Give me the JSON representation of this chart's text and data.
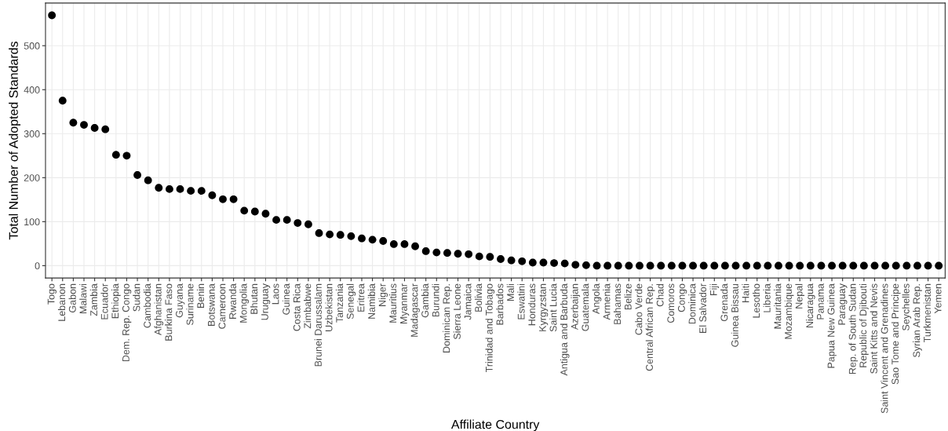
{
  "chart_data": {
    "type": "scatter",
    "xlabel": "Affiliate Country",
    "ylabel": "Total Number of Adopted Standards",
    "categories": [
      "Togo",
      "Lebanon",
      "Gabon",
      "Malawi",
      "Zambia",
      "Ecuador",
      "Ethiopia",
      "Dem. Rep. Congo",
      "Sudan",
      "Cambodia",
      "Afghanistan",
      "Burkina Faso",
      "Guyana",
      "Suriname",
      "Benin",
      "Botswana",
      "Cameroon",
      "Rwanda",
      "Mongolia",
      "Bhutan",
      "Uruguay",
      "Laos",
      "Guinea",
      "Costa Rica",
      "Zimbabwe",
      "Brunei Darussalam",
      "Uzbekistan",
      "Tanzania",
      "Senegal",
      "Eritrea",
      "Namibia",
      "Niger",
      "Mauritius",
      "Myanmar",
      "Madagascar",
      "Gambia",
      "Burundi",
      "Dominican Rep.",
      "Sierra Leone",
      "Jamaica",
      "Bolivia",
      "Trinidad and Tobago",
      "Barbados",
      "Mali",
      "Eswatini",
      "Honduras",
      "Kyrgyzstan",
      "Saint Lucia",
      "Antigua and Barbuda",
      "Azerbaijan",
      "Guatemala",
      "Angola",
      "Armenia",
      "Bahamas",
      "Belize",
      "Cabo Verde",
      "Central African Rep.",
      "Chad",
      "Comoros",
      "Congo",
      "Dominica",
      "El Salvador",
      "Fiji",
      "Grenada",
      "Guinea Bissau",
      "Haiti",
      "Lesotho",
      "Liberia",
      "Mauritania",
      "Mozambique",
      "Nepal",
      "Nicaragua",
      "Panama",
      "Papua New Guinea",
      "Paraguay",
      "Rep. of South Sudan",
      "Republic of Djibouti",
      "Saint Kitts and Nevis",
      "Saint Vincent and Grenadines",
      "Sao Tome and Principe",
      "Seychelles",
      "Syrian Arab Rep.",
      "Turkmenistan",
      "Yemen"
    ],
    "values": [
      569,
      375,
      325,
      320,
      313,
      310,
      252,
      250,
      206,
      194,
      177,
      174,
      174,
      170,
      170,
      160,
      151,
      151,
      125,
      123,
      118,
      104,
      104,
      97,
      94,
      74,
      71,
      70,
      67,
      62,
      59,
      56,
      49,
      49,
      44,
      33,
      30,
      29,
      27,
      26,
      21,
      20,
      15,
      12,
      10,
      7,
      7,
      6,
      5,
      2,
      1,
      0,
      0,
      0,
      0,
      0,
      0,
      0,
      0,
      0,
      0,
      0,
      0,
      0,
      0,
      0,
      0,
      0,
      0,
      0,
      0,
      0,
      0,
      0,
      0,
      0,
      0,
      0,
      0,
      0,
      0,
      0,
      0,
      0
    ],
    "color": "#000000",
    "marker": "circle",
    "ylim": [
      -28,
      597
    ],
    "yticks": [
      0,
      100,
      200,
      300,
      400,
      500
    ],
    "grid": true,
    "legend": false
  }
}
